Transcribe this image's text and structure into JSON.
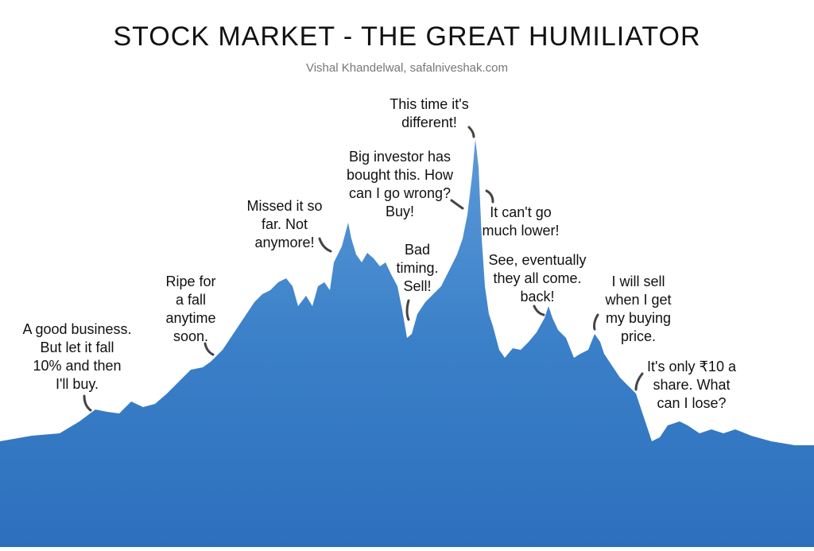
{
  "header": {
    "title": "STOCK MARKET - THE GREAT HUMILIATOR",
    "subtitle": "Vishal Khandelwal, safalniveshak.com"
  },
  "annotations": [
    {
      "lines": [
        "A good business.",
        "But let it fall",
        "10% and then",
        "I'll buy."
      ]
    },
    {
      "lines": [
        "Ripe for",
        "a fall",
        "anytime",
        "soon."
      ]
    },
    {
      "lines": [
        "Missed it so",
        "far. Not",
        "anymore!"
      ]
    },
    {
      "lines": [
        "Big investor has",
        "bought this. How",
        "can I go wrong?",
        "Buy!"
      ]
    },
    {
      "lines": [
        "Bad",
        "timing.",
        "Sell!"
      ]
    },
    {
      "lines": [
        "This time it's",
        "different!"
      ]
    },
    {
      "lines": [
        "It can't go",
        "much lower!"
      ]
    },
    {
      "lines": [
        "See, eventually",
        "they all come.",
        "back!"
      ]
    },
    {
      "lines": [
        "I will sell",
        "when I get",
        "my buying",
        "price."
      ]
    },
    {
      "lines": [
        "It's only ₹10 a",
        "share. What",
        "can I lose?"
      ]
    }
  ]
}
